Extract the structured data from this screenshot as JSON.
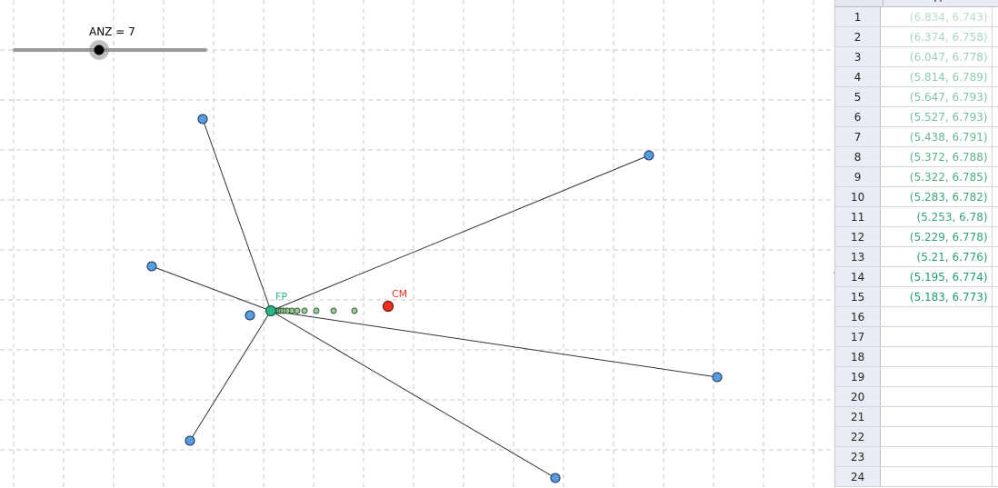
{
  "slider": {
    "name": "ANZ",
    "value": 7,
    "label": "ANZ = 7",
    "min": 0,
    "max": 15
  },
  "points": {
    "FP": {
      "label": "FP",
      "color": "#2db28c"
    },
    "CM": {
      "label": "CM",
      "color": "#e8321e"
    },
    "vertex_color": "#5b9be0",
    "trail_color": "#9ec79a"
  },
  "spreadsheet": {
    "column_header": "A",
    "rows": [
      {
        "n": "1",
        "value": "(6.834, 6.743)",
        "color": "#b7dcc8"
      },
      {
        "n": "2",
        "value": "(6.374, 6.758)",
        "color": "#a9d6bf"
      },
      {
        "n": "3",
        "value": "(6.047, 6.778)",
        "color": "#9bd0b6"
      },
      {
        "n": "4",
        "value": "(5.814, 6.789)",
        "color": "#8ecaad"
      },
      {
        "n": "5",
        "value": "(5.647, 6.793)",
        "color": "#80c4a4"
      },
      {
        "n": "6",
        "value": "(5.527, 6.793)",
        "color": "#73be9b"
      },
      {
        "n": "7",
        "value": "(5.438, 6.791)",
        "color": "#65b892"
      },
      {
        "n": "8",
        "value": "(5.372, 6.788)",
        "color": "#58b289"
      },
      {
        "n": "9",
        "value": "(5.322, 6.785)",
        "color": "#4bac80"
      },
      {
        "n": "10",
        "value": "(5.283, 6.782)",
        "color": "#3ea677"
      },
      {
        "n": "11",
        "value": "(5.253, 6.78)",
        "color": "#37a276"
      },
      {
        "n": "12",
        "value": "(5.229, 6.778)",
        "color": "#30a075"
      },
      {
        "n": "13",
        "value": "(5.21, 6.776)",
        "color": "#2a9e74"
      },
      {
        "n": "14",
        "value": "(5.195, 6.774)",
        "color": "#239c73"
      },
      {
        "n": "15",
        "value": "(5.183, 6.773)",
        "color": "#1d9a72"
      },
      {
        "n": "16",
        "value": ""
      },
      {
        "n": "17",
        "value": ""
      },
      {
        "n": "18",
        "value": ""
      },
      {
        "n": "19",
        "value": ""
      },
      {
        "n": "20",
        "value": ""
      },
      {
        "n": "21",
        "value": ""
      },
      {
        "n": "22",
        "value": ""
      },
      {
        "n": "23",
        "value": ""
      },
      {
        "n": "24",
        "value": ""
      }
    ]
  }
}
